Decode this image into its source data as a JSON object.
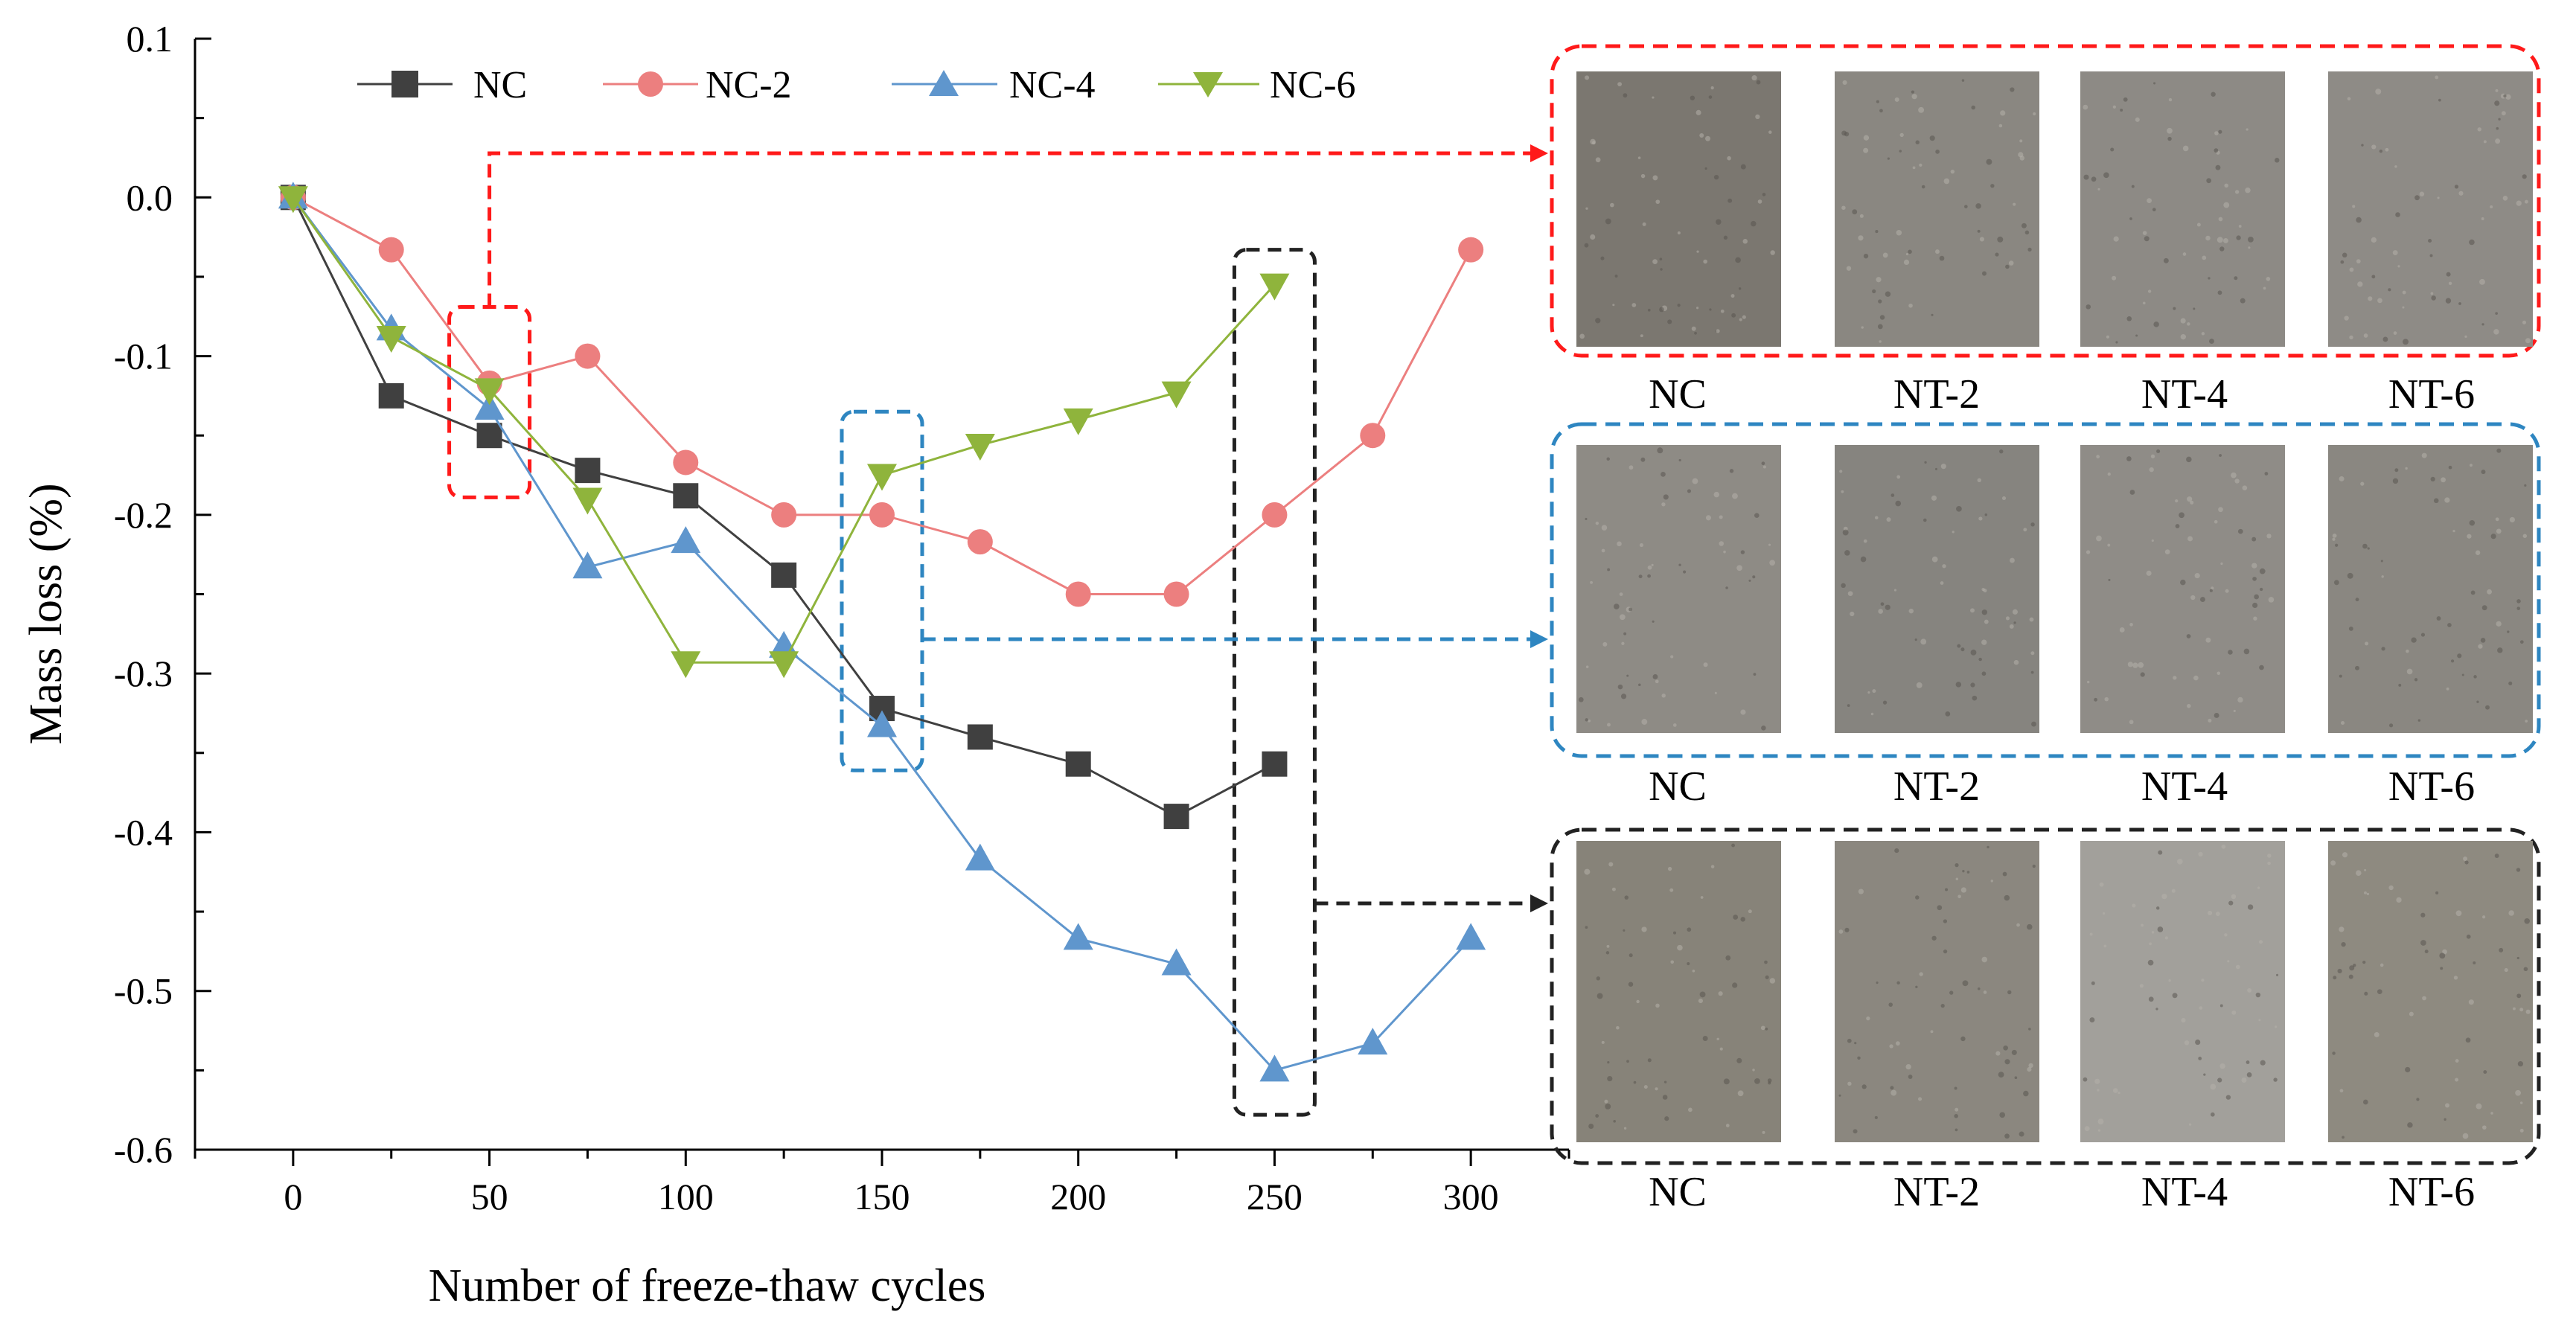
{
  "chart_data": {
    "type": "line",
    "xlabel": "Number of freeze-thaw cycles",
    "ylabel": "Mass loss (%)",
    "xlim": [
      -25,
      325
    ],
    "ylim": [
      -0.6,
      0.1
    ],
    "xticks": [
      0,
      50,
      100,
      150,
      200,
      250,
      300
    ],
    "xtick_labels": [
      "0",
      "50",
      "100",
      "150",
      "200",
      "250",
      "300"
    ],
    "yticks": [
      0.1,
      0.0,
      -0.1,
      -0.2,
      -0.3,
      -0.4,
      -0.5,
      -0.6
    ],
    "ytick_labels": [
      "0.1",
      "0.0",
      "-0.1",
      "-0.2",
      "-0.3",
      "-0.4",
      "-0.5",
      "-0.6"
    ],
    "legend_position": "top",
    "series": [
      {
        "name": "NC",
        "color": "#404040",
        "marker": "square",
        "x": [
          0,
          25,
          50,
          75,
          100,
          125,
          150,
          175,
          200,
          225,
          250
        ],
        "y": [
          0,
          -0.125,
          -0.15,
          -0.172,
          -0.188,
          -0.238,
          -0.322,
          -0.34,
          -0.357,
          -0.39,
          -0.357
        ]
      },
      {
        "name": "NC-2",
        "color": "#ec7f7f",
        "marker": "circle",
        "x": [
          0,
          25,
          50,
          75,
          100,
          125,
          150,
          175,
          200,
          225,
          250,
          275,
          300
        ],
        "y": [
          0,
          -0.033,
          -0.117,
          -0.1,
          -0.167,
          -0.2,
          -0.2,
          -0.217,
          -0.25,
          -0.25,
          -0.2,
          -0.15,
          -0.033
        ]
      },
      {
        "name": "NC-4",
        "color": "#5f96cd",
        "marker": "triangle-up",
        "x": [
          0,
          25,
          50,
          75,
          100,
          125,
          150,
          175,
          200,
          225,
          250,
          275,
          300
        ],
        "y": [
          0,
          -0.083,
          -0.133,
          -0.233,
          -0.217,
          -0.283,
          -0.333,
          -0.417,
          -0.467,
          -0.483,
          -0.55,
          -0.533,
          -0.467
        ]
      },
      {
        "name": "NC-6",
        "color": "#8fb43c",
        "marker": "triangle-down",
        "x": [
          0,
          25,
          50,
          75,
          100,
          125,
          150,
          175,
          200,
          225,
          250
        ],
        "y": [
          0,
          -0.088,
          -0.121,
          -0.19,
          -0.293,
          -0.293,
          -0.175,
          -0.156,
          -0.14,
          -0.123,
          -0.055
        ]
      }
    ],
    "highlights": [
      {
        "cycles": 50,
        "color": "#ff1a1a"
      },
      {
        "cycles": 150,
        "color": "#2e86c1"
      },
      {
        "cycles": 250,
        "color": "#222222"
      }
    ]
  },
  "photo_panels": [
    {
      "cycles": 50,
      "color": "#ff1a1a",
      "labels": [
        "NC",
        "NT-2",
        "NT-4",
        "NT-6"
      ],
      "tones": [
        "#7b7770",
        "#8a8781",
        "#8d8a85",
        "#8e8b86"
      ]
    },
    {
      "cycles": 150,
      "color": "#2e86c1",
      "labels": [
        "NC",
        "NT-2",
        "NT-4",
        "NT-6"
      ],
      "tones": [
        "#8e8b85",
        "#86847f",
        "#8f8c87",
        "#8a8781"
      ]
    },
    {
      "cycles": 250,
      "color": "#222222",
      "labels": [
        "NC",
        "NT-2",
        "NT-4",
        "NT-6"
      ],
      "tones": [
        "#878379",
        "#8b877f",
        "#a2a09b",
        "#8e8a80"
      ]
    }
  ]
}
